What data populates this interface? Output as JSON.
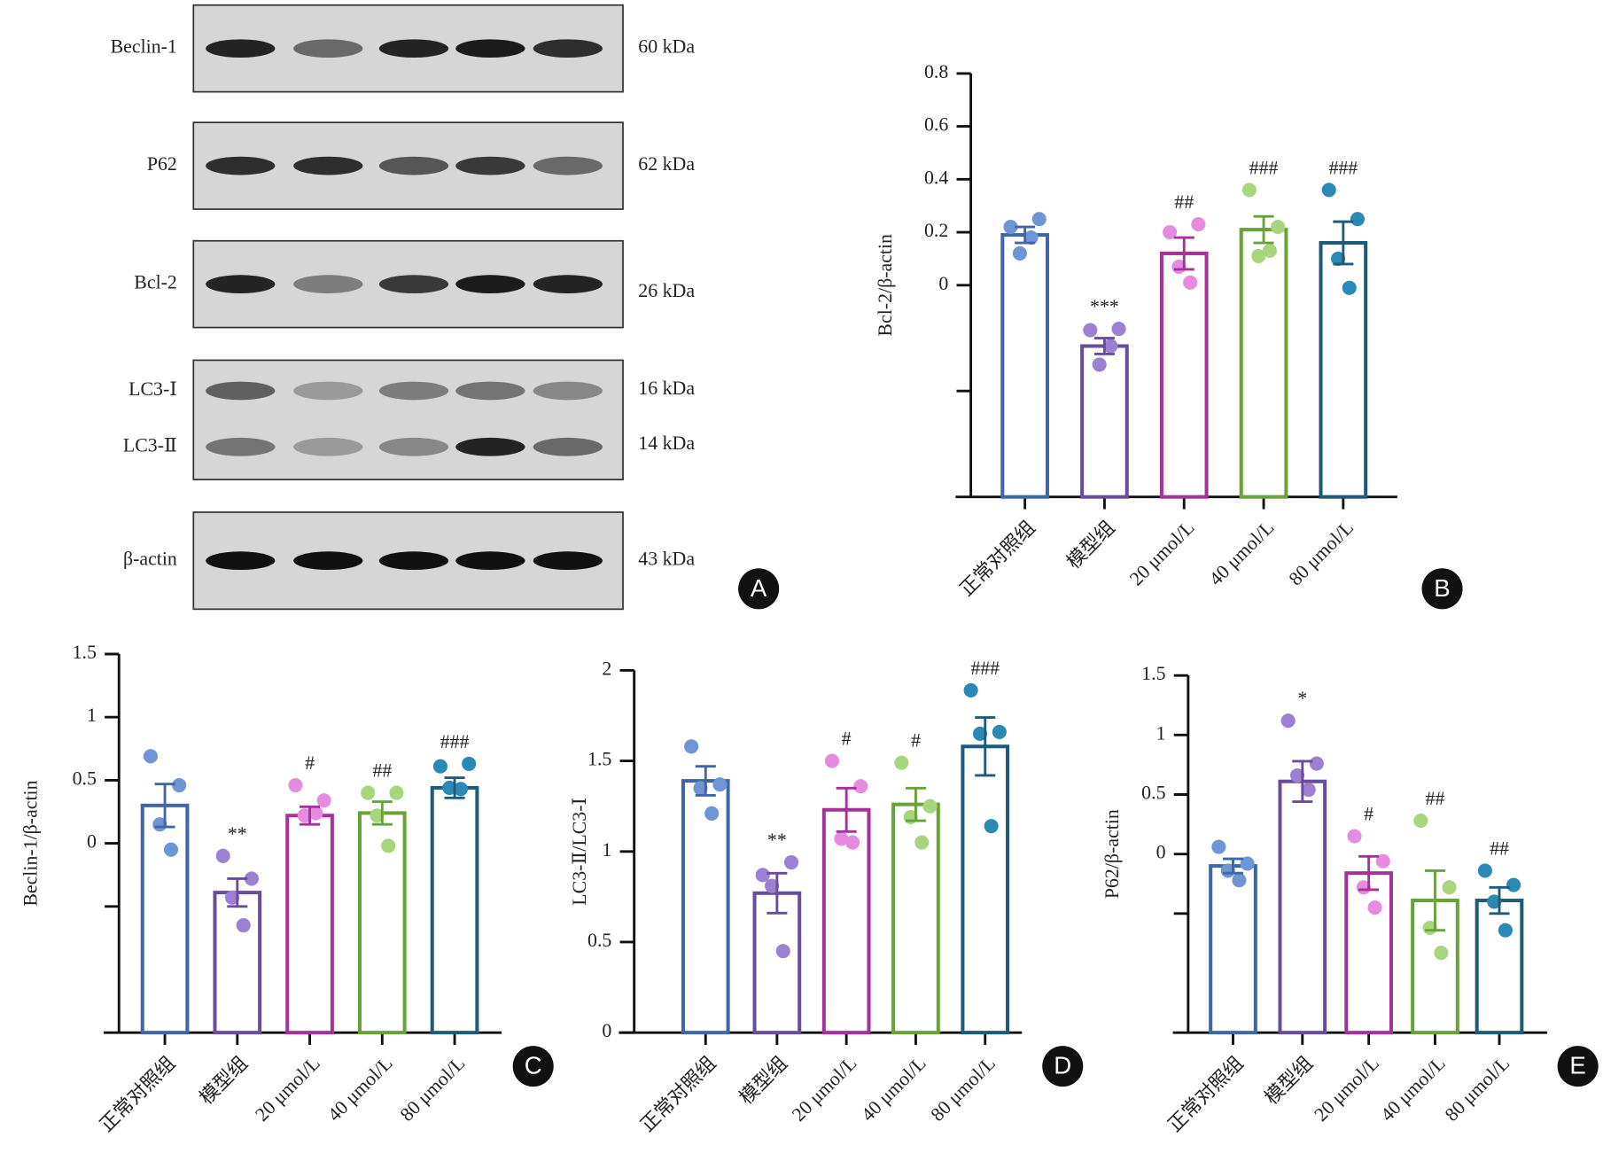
{
  "western_blot": {
    "panel": "A",
    "rows": [
      {
        "labels": [
          "Beclin-1"
        ],
        "sizes": [
          "60 kDa"
        ]
      },
      {
        "labels": [
          "P62"
        ],
        "sizes": [
          "62 kDa"
        ]
      },
      {
        "labels": [
          "Bcl-2"
        ],
        "sizes": [
          "26 kDa"
        ]
      },
      {
        "labels": [
          "LC3-Ⅰ",
          "LC3-Ⅱ"
        ],
        "sizes": [
          "16 kDa",
          "14 kDa"
        ]
      },
      {
        "labels": [
          "β-actin"
        ],
        "sizes": [
          "43 kDa"
        ]
      }
    ]
  },
  "chart_data": [
    {
      "type": "bar",
      "panel": "B",
      "ylabel": "Bcl-2/β-actin",
      "categories": [
        "正常对照组",
        "模型组",
        "20 μmol/L",
        "40 μmol/L",
        "80 μmol/L"
      ],
      "colors": [
        "#3f66a6",
        "#6a4c9c",
        "#a3329a",
        "#6aa23a",
        "#1f5b78"
      ],
      "point_colors": [
        "#6f95d4",
        "#9c80d2",
        "#e68ce0",
        "#a8d67e",
        "#2a8ab5"
      ],
      "values": [
        0.19,
        -0.23,
        0.12,
        0.21,
        0.16
      ],
      "errors": [
        0.03,
        0.03,
        0.06,
        0.05,
        0.08
      ],
      "points": [
        [
          0.22,
          0.25,
          0.12,
          0.18
        ],
        [
          -0.17,
          -0.165,
          -0.3,
          -0.23
        ],
        [
          0.2,
          0.23,
          0.07,
          0.01
        ],
        [
          0.36,
          0.22,
          0.11,
          0.13
        ],
        [
          0.36,
          0.25,
          0.1,
          -0.01
        ]
      ],
      "annotations": [
        null,
        "***",
        "##",
        "###",
        "###"
      ],
      "ylim": [
        -0.8,
        0.8
      ],
      "yticks": [
        0.8,
        0.6,
        0.4,
        0.2,
        0.0
      ],
      "yticks_unlabeled": [
        -0.4
      ]
    },
    {
      "type": "bar",
      "panel": "C",
      "ylabel": "Beclin-1/β-actin",
      "categories": [
        "正常对照组",
        "模型组",
        "20 μmol/L",
        "40 μmol/L",
        "80 μmol/L"
      ],
      "colors": [
        "#3f66a6",
        "#6a4c9c",
        "#a3329a",
        "#6aa23a",
        "#1f5b78"
      ],
      "point_colors": [
        "#6f95d4",
        "#9c80d2",
        "#e68ce0",
        "#a8d67e",
        "#2a8ab5"
      ],
      "values": [
        0.3,
        -0.39,
        0.22,
        0.24,
        0.44
      ],
      "errors": [
        0.17,
        0.11,
        0.07,
        0.09,
        0.08
      ],
      "points": [
        [
          0.69,
          0.46,
          0.15,
          -0.05
        ],
        [
          -0.1,
          -0.28,
          -0.43,
          -0.65
        ],
        [
          0.46,
          0.34,
          0.22,
          0.24
        ],
        [
          0.4,
          0.4,
          0.22,
          -0.02
        ],
        [
          0.61,
          0.63,
          0.44,
          0.43
        ]
      ],
      "annotations": [
        null,
        "**",
        "#",
        "##",
        "###"
      ],
      "ylim": [
        -1.5,
        1.5
      ],
      "yticks": [
        1.5,
        1.0,
        0.5,
        0.0
      ],
      "yticks_unlabeled": [
        -0.5
      ]
    },
    {
      "type": "bar",
      "panel": "D",
      "ylabel": "LC3-Ⅱ/LC3-Ⅰ",
      "categories": [
        "正常对照组",
        "模型组",
        "20 μmol/L",
        "40 μmol/L",
        "80 μmol/L"
      ],
      "colors": [
        "#3f66a6",
        "#6a4c9c",
        "#a3329a",
        "#6aa23a",
        "#1f5b78"
      ],
      "point_colors": [
        "#6f95d4",
        "#9c80d2",
        "#e68ce0",
        "#a8d67e",
        "#2a8ab5"
      ],
      "values": [
        1.39,
        0.77,
        1.23,
        1.26,
        1.58
      ],
      "errors": [
        0.08,
        0.11,
        0.12,
        0.09,
        0.16
      ],
      "points": [
        [
          1.58,
          1.37,
          1.35,
          1.21
        ],
        [
          0.87,
          0.94,
          0.81,
          0.45
        ],
        [
          1.5,
          1.36,
          1.07,
          1.05
        ],
        [
          1.49,
          1.25,
          1.19,
          1.05
        ],
        [
          1.89,
          1.66,
          1.65,
          1.14
        ]
      ],
      "annotations": [
        null,
        "**",
        "#",
        "#",
        "###"
      ],
      "ylim": [
        0.0,
        2.0
      ],
      "yticks": [
        2.0,
        1.5,
        1.0,
        0.5,
        0.0
      ]
    },
    {
      "type": "bar",
      "panel": "E",
      "ylabel": "P62/β-actin",
      "categories": [
        "正常对照组",
        "模型组",
        "20 μmol/L",
        "40 μmol/L",
        "80 μmol/L"
      ],
      "colors": [
        "#3f66a6",
        "#6a4c9c",
        "#a3329a",
        "#6aa23a",
        "#1f5b78"
      ],
      "point_colors": [
        "#6f95d4",
        "#9c80d2",
        "#e68ce0",
        "#a8d67e",
        "#2a8ab5"
      ],
      "values": [
        -0.1,
        0.61,
        -0.16,
        -0.39,
        -0.39
      ],
      "errors": [
        0.06,
        0.17,
        0.14,
        0.25,
        0.11
      ],
      "points": [
        [
          0.06,
          -0.08,
          -0.14,
          -0.22
        ],
        [
          1.12,
          0.76,
          0.66,
          0.54
        ],
        [
          0.15,
          -0.06,
          -0.28,
          -0.45
        ],
        [
          0.28,
          -0.28,
          -0.62,
          -0.83
        ],
        [
          -0.14,
          -0.26,
          -0.4,
          -0.64
        ]
      ],
      "annotations": [
        null,
        "*",
        "#",
        "##",
        "##"
      ],
      "ylim": [
        -1.5,
        1.5
      ],
      "yticks": [
        1.5,
        1.0,
        0.5,
        0.0
      ],
      "yticks_unlabeled": [
        -0.5
      ]
    }
  ]
}
